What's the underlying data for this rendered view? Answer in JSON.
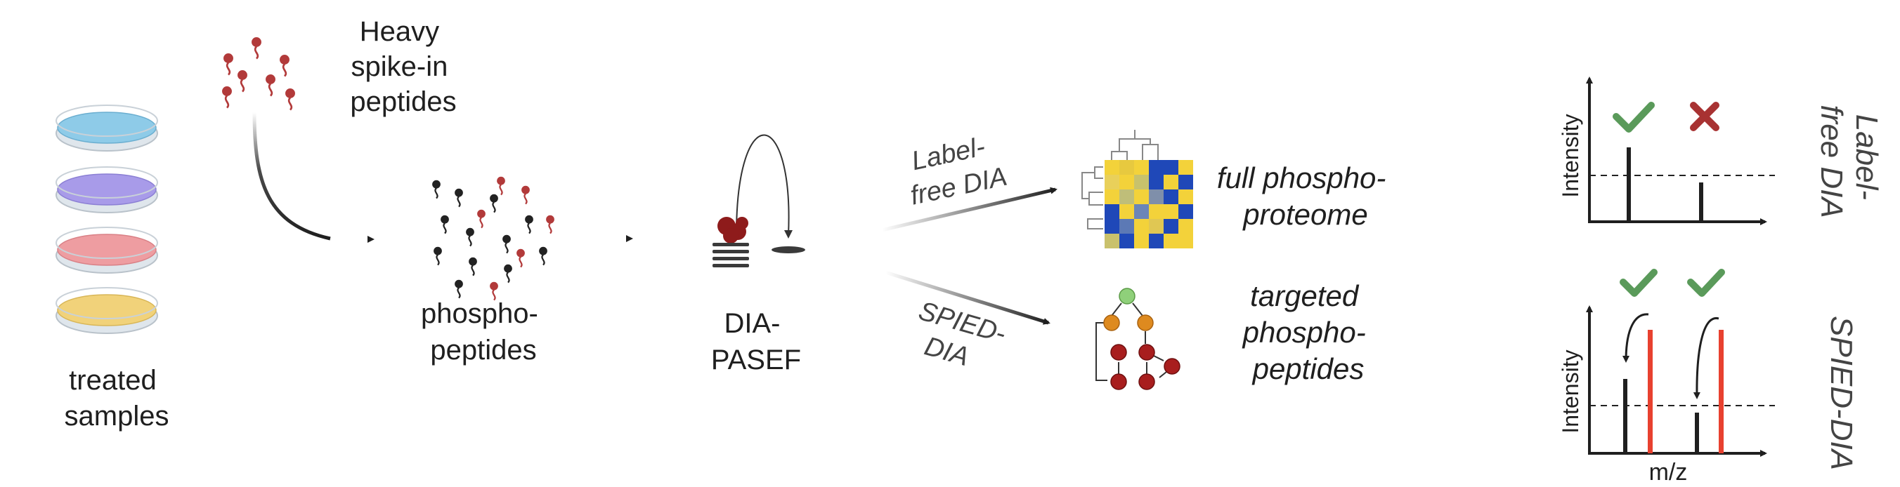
{
  "colors": {
    "dish_blue": "#8ecbe8",
    "dish_purple": "#a89be9",
    "dish_red": "#ee9da1",
    "dish_yellow": "#f1d27a",
    "heavy_peptide": "#b23a3a",
    "light_peptide": "#222222",
    "check_green": "#5a9a5a",
    "cross_red": "#a83232",
    "heavy_line": "#e8412f",
    "node_green": "#8fd07a",
    "node_orange": "#de8a1f",
    "node_red": "#a81e1e",
    "heat_yellow": "#f3d23a",
    "heat_blue": "#1f48b8"
  },
  "labels": {
    "samples": [
      "treated",
      "samples"
    ],
    "spike": [
      "Heavy",
      "spike-in",
      "peptides"
    ],
    "phospho": [
      "phospho-",
      "peptides"
    ],
    "diapasef": [
      "DIA-",
      "PASEF"
    ],
    "labelfree_branch": [
      "Label-",
      "free DIA"
    ],
    "spied_branch": [
      "SPIED-",
      "DIA"
    ],
    "full": [
      "full phospho-",
      "proteome"
    ],
    "targeted": [
      "targeted",
      "phospho-",
      "peptides"
    ],
    "intensity": "Intensity",
    "mz": "m/z",
    "side_labelfree": [
      "Label-",
      "free DIA"
    ],
    "side_spied": "SPIED-DIA"
  }
}
